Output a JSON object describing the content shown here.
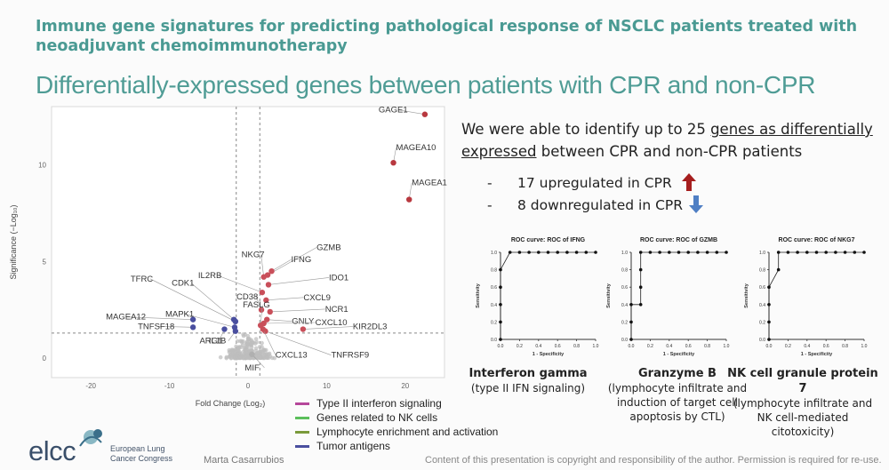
{
  "slide": {
    "title": "Immune gene signatures for predicting pathological response of NSCLC patients treated with neoadjuvant chemoimmunotherapy",
    "subtitle": "Differentially-expressed genes between patients with CPR and non-CPR",
    "intro_part1": "We were able to identify up to 25 ",
    "intro_underlined": "genes as differentially expressed",
    "intro_part2": " between CPR and non-CPR patients",
    "bullet_up": "17 upregulated in CPR",
    "bullet_down": "8 downregulated in CPR",
    "bullet_dash": "-",
    "author": "Marta Casarrubios",
    "copyright": "Content of this presentation is copyright and responsibility of the author. Permission is required for re-use.",
    "logo_text": "elcc",
    "logo_sub_line1": "European Lung",
    "logo_sub_line2": "Cancer Congress",
    "colors": {
      "teal": "#4a9a93",
      "up_arrow": "#a61e1e",
      "down_arrow": "#4f7fc4"
    }
  },
  "chart_data": [
    {
      "type": "scatter",
      "title": "",
      "xlabel": "Fold Change (Log₂)",
      "ylabel": "Significance (−Log₁₀)",
      "xlim": [
        -25,
        25
      ],
      "ylim": [
        -1,
        13
      ],
      "x_ticks": [
        -20,
        -10,
        0,
        10,
        20
      ],
      "y_ticks": [
        0,
        5,
        10
      ],
      "threshold_lines": {
        "x": [
          -1.5,
          1.5
        ],
        "y": 1.3
      },
      "grid": false,
      "legend_position": "below",
      "legend": [
        {
          "name": "Type II interferon signaling",
          "color": "#b5479a"
        },
        {
          "name": "Genes related to NK cells",
          "color": "#5bbf5b"
        },
        {
          "name": "Lymphocyte enrichment and activation",
          "color": "#7a9a3a"
        },
        {
          "name": "Tumor antigens",
          "color": "#4a4f9f"
        }
      ],
      "labeled_genes": [
        {
          "gene": "GAGE1",
          "x": 22.5,
          "y": 12.6,
          "color": "#b8383f"
        },
        {
          "gene": "MAGEA10",
          "x": 18.5,
          "y": 10.1,
          "color": "#b8383f"
        },
        {
          "gene": "MAGEA1",
          "x": 20.5,
          "y": 8.2,
          "color": "#b8383f"
        },
        {
          "gene": "GZMB",
          "x": 2.5,
          "y": 4.3,
          "color": "#c94f5a"
        },
        {
          "gene": "NKG7",
          "x": 2.0,
          "y": 4.2,
          "color": "#c94f5a"
        },
        {
          "gene": "IFNG",
          "x": 3.0,
          "y": 4.5,
          "color": "#c94f5a"
        },
        {
          "gene": "IDO1",
          "x": 2.6,
          "y": 3.8,
          "color": "#c94f5a"
        },
        {
          "gene": "CXCL9",
          "x": 2.3,
          "y": 3.0,
          "color": "#c94f5a"
        },
        {
          "gene": "NCR1",
          "x": 2.8,
          "y": 2.4,
          "color": "#c94f5a"
        },
        {
          "gene": "GNLY",
          "x": 2.4,
          "y": 2.0,
          "color": "#c94f5a"
        },
        {
          "gene": "CXCL10",
          "x": 2.0,
          "y": 1.8,
          "color": "#c94f5a"
        },
        {
          "gene": "KIR2DL3",
          "x": 7.0,
          "y": 1.5,
          "color": "#c94f5a"
        },
        {
          "gene": "TNFRSF9",
          "x": 2.2,
          "y": 1.4,
          "color": "#c94f5a"
        },
        {
          "gene": "CXCL13",
          "x": 1.9,
          "y": 1.5,
          "color": "#c94f5a"
        },
        {
          "gene": "IL2RB",
          "x": 1.8,
          "y": 3.4,
          "color": "#c94f5a"
        },
        {
          "gene": "CD38",
          "x": 1.7,
          "y": 2.5,
          "color": "#c94f5a"
        },
        {
          "gene": "TFRC",
          "x": -1.6,
          "y": 1.9,
          "color": "#4a4f9f"
        },
        {
          "gene": "CDK1",
          "x": -1.8,
          "y": 2.0,
          "color": "#4a4f9f"
        },
        {
          "gene": "FASLG",
          "x": 1.6,
          "y": 1.7,
          "color": "#c94f5a"
        },
        {
          "gene": "MAPK1",
          "x": -1.7,
          "y": 1.6,
          "color": "#4a4f9f"
        },
        {
          "gene": "MAGEA12",
          "x": -7.0,
          "y": 2.0,
          "color": "#4a4f9f"
        },
        {
          "gene": "TNFSF18",
          "x": -7.0,
          "y": 1.6,
          "color": "#4a4f9f"
        },
        {
          "gene": "ARG1",
          "x": -3.0,
          "y": 1.5,
          "color": "#4a4f9f"
        },
        {
          "gene": "IL1B",
          "x": -1.6,
          "y": 1.4,
          "color": "#4a4f9f"
        },
        {
          "gene": "MIF",
          "x": 0.5,
          "y": 0.2,
          "color": "#b0b0b0"
        }
      ]
    },
    {
      "type": "scatter",
      "title": "ROC curve: ROC of IFNG",
      "xlabel": "1 - Specificity",
      "ylabel": "Sensitivity",
      "xlim": [
        0,
        1
      ],
      "ylim": [
        0,
        1
      ],
      "ticks": [
        "0.0",
        "0.2",
        "0.4",
        "0.6",
        "0.8",
        "1.0"
      ],
      "x": [
        0,
        0,
        0,
        0,
        0,
        0.1,
        0.2,
        0.3,
        0.4,
        0.5,
        0.6,
        0.7,
        0.8,
        0.9,
        1.0
      ],
      "y": [
        0,
        0.2,
        0.4,
        0.6,
        0.8,
        1.0,
        1.0,
        1.0,
        1.0,
        1.0,
        1.0,
        1.0,
        1.0,
        1.0,
        1.0
      ]
    },
    {
      "type": "scatter",
      "title": "ROC curve: ROC of GZMB",
      "xlabel": "1 - Specificity",
      "ylabel": "Sensitivity",
      "xlim": [
        0,
        1
      ],
      "ylim": [
        0,
        1
      ],
      "ticks": [
        "0.0",
        "0.2",
        "0.4",
        "0.6",
        "0.8",
        "1.0"
      ],
      "x": [
        0,
        0,
        0,
        0.1,
        0.1,
        0.1,
        0.1,
        0.2,
        0.3,
        0.4,
        0.5,
        0.6,
        0.7,
        0.8,
        0.9,
        1.0
      ],
      "y": [
        0,
        0.2,
        0.4,
        0.4,
        0.6,
        0.8,
        1.0,
        1.0,
        1.0,
        1.0,
        1.0,
        1.0,
        1.0,
        1.0,
        1.0,
        1.0
      ]
    },
    {
      "type": "scatter",
      "title": "ROC curve: ROC of NKG7",
      "xlabel": "1 - Specificity",
      "ylabel": "Sensitivity",
      "xlim": [
        0,
        1
      ],
      "ylim": [
        0,
        1
      ],
      "ticks": [
        "0.0",
        "0.2",
        "0.4",
        "0.6",
        "0.8",
        "1.0"
      ],
      "x": [
        0,
        0,
        0,
        0,
        0.1,
        0.1,
        0.2,
        0.3,
        0.4,
        0.5,
        0.6,
        0.7,
        0.8,
        0.9,
        1.0
      ],
      "y": [
        0,
        0.2,
        0.4,
        0.6,
        0.8,
        1.0,
        1.0,
        1.0,
        1.0,
        1.0,
        1.0,
        1.0,
        1.0,
        1.0,
        1.0
      ]
    }
  ],
  "roc_captions": [
    {
      "title": "Interferon gamma",
      "desc": "(type II IFN signaling)"
    },
    {
      "title": "Granzyme B",
      "desc": "(lymphocyte infiltrate and induction of target cell apoptosis by CTL)"
    },
    {
      "title": "NK cell granule protein 7",
      "desc": "(lymphocyte infiltrate and NK cell-mediated citotoxicity)"
    }
  ]
}
